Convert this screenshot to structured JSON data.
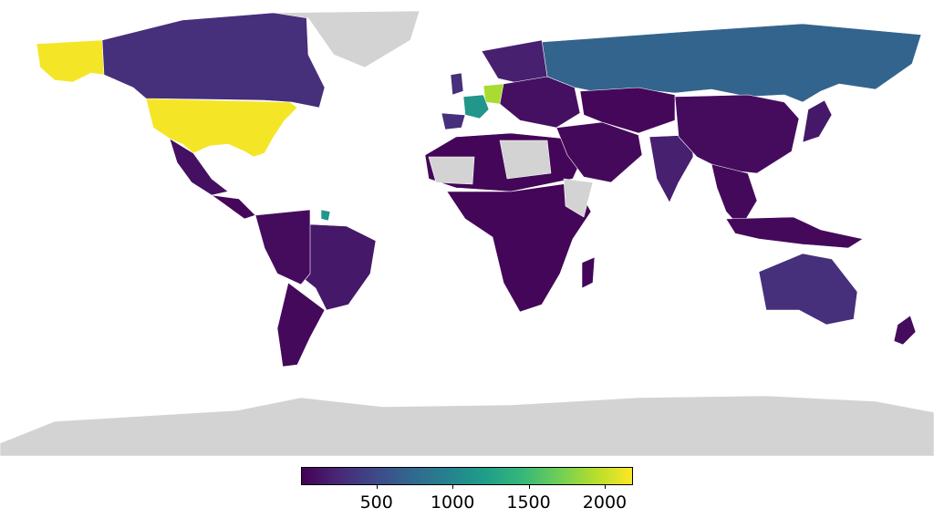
{
  "colorbar": {
    "colormap": "viridis",
    "stops": [
      "#440154",
      "#482878",
      "#3e4989",
      "#31688e",
      "#26828e",
      "#1f9e89",
      "#35b779",
      "#6ece58",
      "#b5de2b",
      "#fde725"
    ],
    "range": [
      10,
      2180
    ],
    "ticks": [
      500,
      1000,
      1500,
      2000
    ],
    "tick_labels": [
      "500",
      "1000",
      "1500",
      "2000"
    ]
  },
  "colors": {
    "no_data": "#d3d3d3",
    "background": "#ffffff",
    "border": "#ffffff"
  },
  "regions": [
    {
      "name": "United States",
      "value": 2150
    },
    {
      "name": "Alaska",
      "value": 2150
    },
    {
      "name": "Germany",
      "value": 1900
    },
    {
      "name": "France",
      "value": 1150
    },
    {
      "name": "French Guiana",
      "value": 1150
    },
    {
      "name": "Russia",
      "value": 700
    },
    {
      "name": "Canada",
      "value": 300
    },
    {
      "name": "United Kingdom",
      "value": 300
    },
    {
      "name": "Spain",
      "value": 300
    },
    {
      "name": "Australia",
      "value": 300
    },
    {
      "name": "India",
      "value": 200
    },
    {
      "name": "Brazil",
      "value": 150
    },
    {
      "name": "Scandinavia",
      "value": 200
    },
    {
      "name": "Mexico",
      "value": 100
    },
    {
      "name": "Central America",
      "value": 50
    },
    {
      "name": "South America (west)",
      "value": 80
    },
    {
      "name": "Argentina",
      "value": 60
    },
    {
      "name": "Northern Africa",
      "value": 40
    },
    {
      "name": "Central and Southern Africa",
      "value": 40
    },
    {
      "name": "Madagascar",
      "value": 40
    },
    {
      "name": "Middle East",
      "value": 60
    },
    {
      "name": "Central Asia",
      "value": 50
    },
    {
      "name": "China",
      "value": 80
    },
    {
      "name": "Southeast Asia",
      "value": 60
    },
    {
      "name": "Japan",
      "value": 150
    },
    {
      "name": "Indonesia",
      "value": 60
    },
    {
      "name": "New Zealand",
      "value": 80
    },
    {
      "name": "Eastern Europe",
      "value": 100
    },
    {
      "name": "Greenland",
      "value": null
    },
    {
      "name": "Antarctica",
      "value": null
    },
    {
      "name": "Sahara gaps",
      "value": null
    },
    {
      "name": "Horn of Africa",
      "value": null
    }
  ]
}
